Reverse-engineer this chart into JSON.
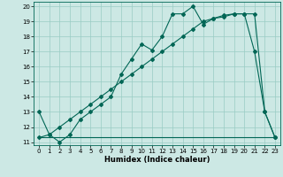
{
  "xlabel": "Humidex (Indice chaleur)",
  "bg_color": "#cce8e4",
  "grid_color": "#99ccc4",
  "line_color": "#006655",
  "xlim": [
    -0.5,
    23.5
  ],
  "ylim": [
    10.8,
    20.3
  ],
  "xticks": [
    0,
    1,
    2,
    3,
    4,
    5,
    6,
    7,
    8,
    9,
    10,
    11,
    12,
    13,
    14,
    15,
    16,
    17,
    18,
    19,
    20,
    21,
    22,
    23
  ],
  "yticks": [
    11,
    12,
    13,
    14,
    15,
    16,
    17,
    18,
    19,
    20
  ],
  "line1_x": [
    0,
    1,
    2,
    3,
    4,
    5,
    6,
    7,
    8,
    9,
    10,
    11,
    12,
    13,
    14,
    15,
    16,
    17,
    18,
    19,
    20,
    21,
    22,
    23
  ],
  "line1_y": [
    13.0,
    11.5,
    11.0,
    11.5,
    12.5,
    13.0,
    13.5,
    14.0,
    15.5,
    16.5,
    17.5,
    17.1,
    18.0,
    19.5,
    19.5,
    20.0,
    18.8,
    19.2,
    19.3,
    19.5,
    19.5,
    17.0,
    13.0,
    11.3
  ],
  "line2_x": [
    0,
    1,
    2,
    3,
    4,
    5,
    6,
    7,
    8,
    9,
    10,
    11,
    12,
    13,
    14,
    15,
    16,
    17,
    18,
    19,
    20,
    21,
    22,
    23
  ],
  "line2_y": [
    11.3,
    11.5,
    12.0,
    12.5,
    13.0,
    13.5,
    14.0,
    14.5,
    15.0,
    15.5,
    16.0,
    16.5,
    17.0,
    17.5,
    18.0,
    18.5,
    19.0,
    19.2,
    19.4,
    19.5,
    19.5,
    19.5,
    13.0,
    11.3
  ],
  "line3_x": [
    0,
    1,
    2,
    3,
    4,
    5,
    6,
    7,
    8,
    9,
    10,
    11,
    12,
    13,
    14,
    15,
    16,
    17,
    18,
    19,
    20,
    21,
    22,
    23
  ],
  "line3_y": [
    11.3,
    11.3,
    11.3,
    11.3,
    11.3,
    11.3,
    11.3,
    11.3,
    11.3,
    11.3,
    11.3,
    11.3,
    11.3,
    11.3,
    11.3,
    11.3,
    11.3,
    11.3,
    11.3,
    11.3,
    11.3,
    11.3,
    11.3,
    11.3
  ]
}
